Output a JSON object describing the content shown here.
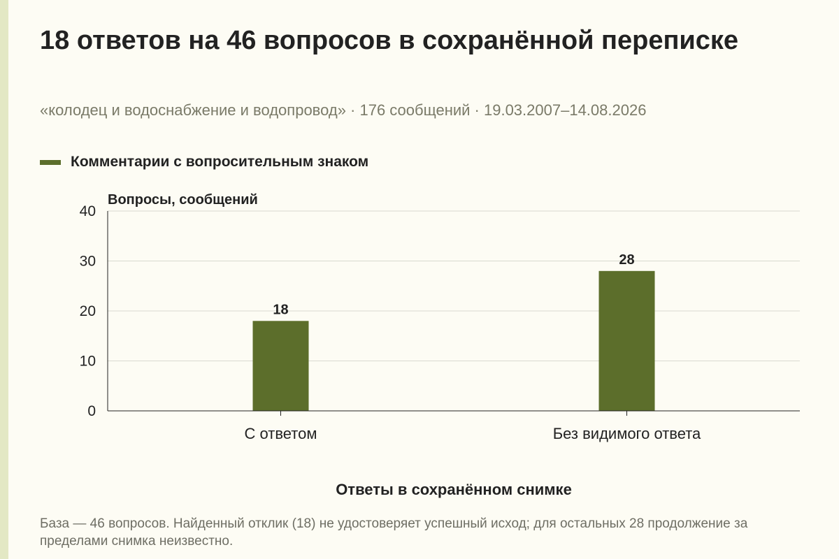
{
  "header": {
    "title": "18 ответов на 46 вопросов в сохранённой переписке",
    "subtitle": "«колодец и водоснабжение и водопровод» · 176 сообщений · 19.03.2007–14.08.2026"
  },
  "colors": {
    "bar": "#5c6e2b",
    "background": "#fdfcf4",
    "grid": "#d9d9d0",
    "axis": "#222222"
  },
  "chart_data": {
    "type": "bar",
    "title": "",
    "categories": [
      "С ответом",
      "Без видимого ответа"
    ],
    "series": [
      {
        "name": "Комментарии с вопросительным знаком",
        "values": [
          18,
          28
        ]
      }
    ],
    "ylabel": "Вопросы, сообщений",
    "xlabel": "Ответы в сохранённом снимке",
    "ylim": [
      0,
      40
    ],
    "yticks": [
      0,
      10,
      20,
      30,
      40
    ],
    "grid": true,
    "legend_position": "top-left",
    "data_labels": [
      "18",
      "28"
    ]
  },
  "footnote": "База — 46 вопросов. Найденный отклик (18) не удостоверяет успешный исход; для остальных 28 продолжение за пределами снимка неизвестно."
}
